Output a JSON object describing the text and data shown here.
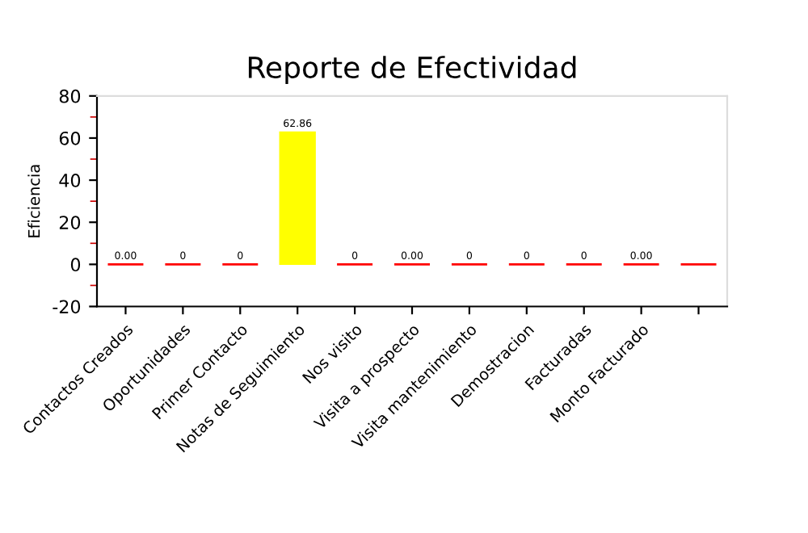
{
  "chart_data": {
    "type": "bar",
    "title": "Reporte de Efectividad",
    "ylabel": "Eficiencia",
    "categories": [
      "Contactos Creados",
      "Oportunidades",
      "Primer Contacto",
      "Notas de Seguimiento",
      "Nos visito",
      "Visita a prospecto",
      "Visita mantenimiento",
      "Demostracion",
      "Facturadas",
      "Monto Facturado",
      null
    ],
    "values": [
      0,
      0,
      0,
      62.86,
      0,
      0,
      0,
      0,
      0,
      0,
      0
    ],
    "colors": [
      "#ff0000",
      "#ff0000",
      "#ff0000",
      "#ffff00",
      "#ff0000",
      "#ff0000",
      "#ff0000",
      "#ff0000",
      "#ff0000",
      "#ff0000",
      "#ff0000"
    ],
    "value_labels": [
      "0.00",
      "0",
      "0",
      "62.86",
      "0",
      "0.00",
      "0",
      "0",
      "0",
      "0.00",
      null
    ],
    "ylim": [
      -20,
      80
    ],
    "yticks": [
      -20,
      0,
      20,
      40,
      60,
      80
    ],
    "grid": false,
    "legend": false
  }
}
